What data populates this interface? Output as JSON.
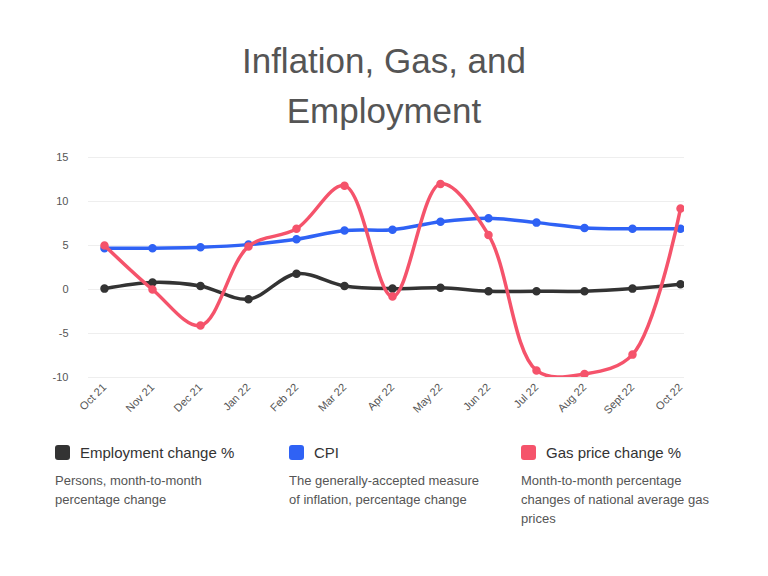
{
  "chart_data": {
    "type": "line",
    "title": "Inflation, Gas, and Employment",
    "categories": [
      "Oct 21",
      "Nov 21",
      "Dec 21",
      "Jan 22",
      "Feb 22",
      "Mar 22",
      "Apr 22",
      "May 22",
      "Jun 22",
      "Jul 22",
      "Aug 22",
      "Sept 22",
      "Oct 22"
    ],
    "series": [
      {
        "name": "Employment change %",
        "color": "#333333",
        "description": "Persons, month-to-month percentage change",
        "values": [
          0.1,
          0.8,
          0.4,
          -1.1,
          1.8,
          0.4,
          0.1,
          0.2,
          -0.2,
          -0.2,
          -0.2,
          0.1,
          0.6
        ]
      },
      {
        "name": "CPI",
        "color": "#2f62f5",
        "description": "The generally-accepted measure of inflation, percentage change",
        "values": [
          4.7,
          4.7,
          4.8,
          5.1,
          5.7,
          6.7,
          6.8,
          7.7,
          8.1,
          7.6,
          7.0,
          6.9,
          6.9
        ]
      },
      {
        "name": "Gas price change %",
        "color": "#f5536b",
        "description": "Month-to-month percentage changes of national average gas prices",
        "values": [
          5.0,
          0.0,
          -4.1,
          4.9,
          6.9,
          11.8,
          -0.8,
          12.0,
          6.2,
          -9.2,
          -9.6,
          -7.4,
          9.2
        ]
      }
    ],
    "ylim": [
      -10,
      15
    ],
    "yticks": [
      -10,
      -5,
      0,
      5,
      10,
      15
    ],
    "grid": true,
    "marker": "circle",
    "legend": "bottom"
  }
}
